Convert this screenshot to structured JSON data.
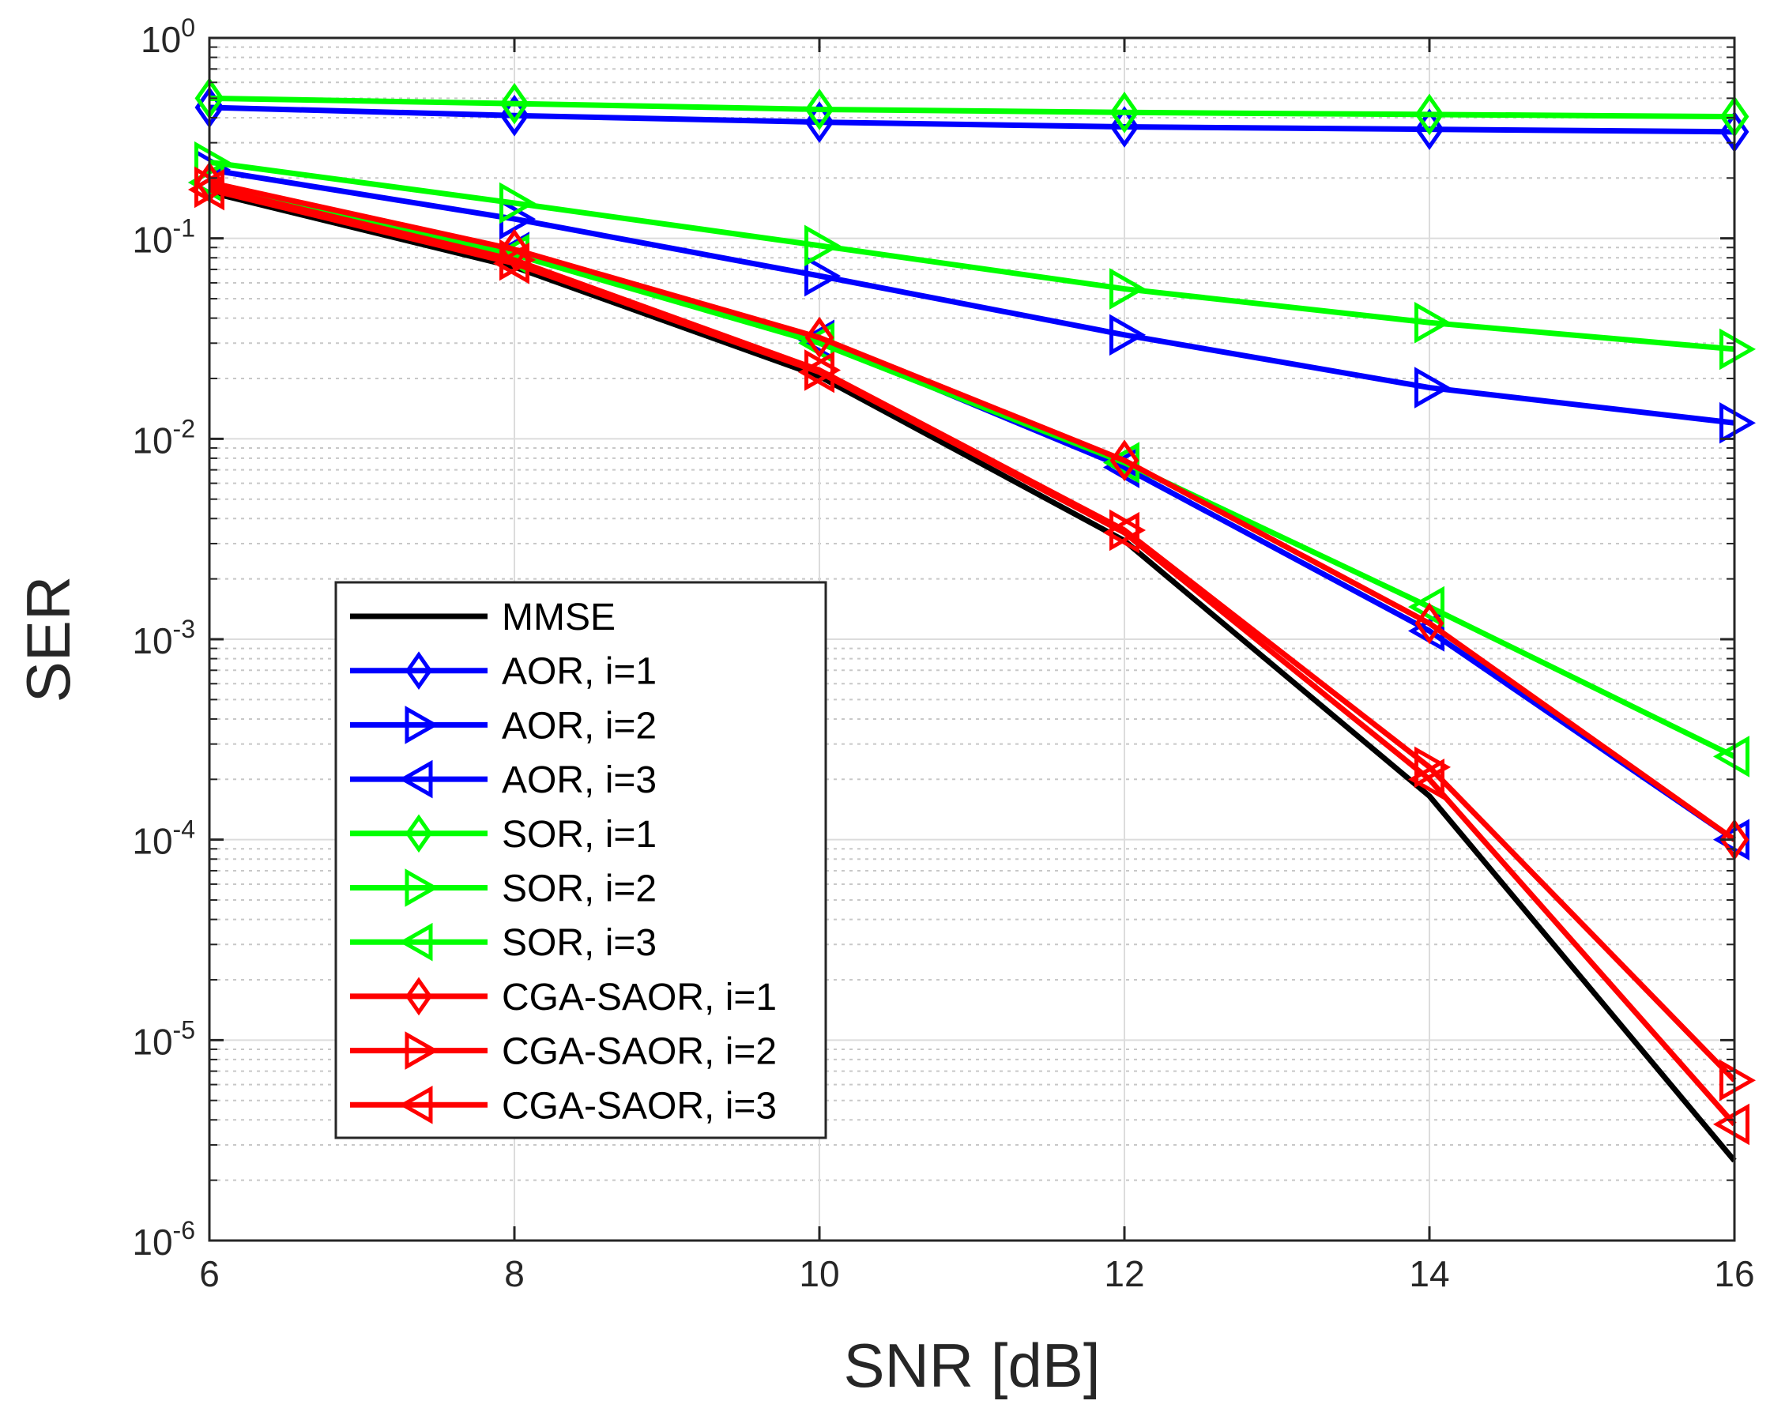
{
  "chart_data": {
    "type": "line",
    "title": "",
    "xlabel": "SNR [dB]",
    "ylabel": "SER",
    "x_scale": "linear",
    "y_scale": "log",
    "xlim": [
      6,
      16
    ],
    "ylim": [
      1e-06,
      1
    ],
    "x_ticks": [
      "6",
      "8",
      "10",
      "12",
      "14",
      "16"
    ],
    "y_ticks": [
      {
        "base": "10",
        "exp": "0"
      },
      {
        "base": "10",
        "exp": "-1"
      },
      {
        "base": "10",
        "exp": "-2"
      },
      {
        "base": "10",
        "exp": "-3"
      },
      {
        "base": "10",
        "exp": "-4"
      },
      {
        "base": "10",
        "exp": "-5"
      },
      {
        "base": "10",
        "exp": "-6"
      }
    ],
    "grid": true,
    "legend_position": "lower-left",
    "x": [
      6,
      8,
      10,
      12,
      14,
      16
    ],
    "series": [
      {
        "name": "MMSE",
        "color": "#000000",
        "marker": "none",
        "values": [
          0.17,
          0.072,
          0.0205,
          0.0031,
          0.000165,
          2.5e-06
        ]
      },
      {
        "name": "AOR, i=1",
        "color": "#0000ff",
        "marker": "diamond",
        "values": [
          0.45,
          0.41,
          0.38,
          0.36,
          0.35,
          0.34
        ]
      },
      {
        "name": "AOR, i=2",
        "color": "#0000ff",
        "marker": "triangle-right",
        "values": [
          0.22,
          0.125,
          0.065,
          0.033,
          0.018,
          0.012
        ]
      },
      {
        "name": "AOR, i=3",
        "color": "#0000ff",
        "marker": "triangle-left",
        "values": [
          0.19,
          0.085,
          0.031,
          0.0072,
          0.0011,
          0.0001
        ]
      },
      {
        "name": "SOR, i=1",
        "color": "#00ff00",
        "marker": "diamond",
        "values": [
          0.5,
          0.47,
          0.44,
          0.425,
          0.415,
          0.405
        ]
      },
      {
        "name": "SOR, i=2",
        "color": "#00ff00",
        "marker": "triangle-right",
        "values": [
          0.24,
          0.15,
          0.092,
          0.056,
          0.038,
          0.028
        ]
      },
      {
        "name": "SOR, i=3",
        "color": "#00ff00",
        "marker": "triangle-left",
        "values": [
          0.19,
          0.083,
          0.03,
          0.0076,
          0.00145,
          0.00026
        ]
      },
      {
        "name": "CGA-SAOR, i=1",
        "color": "#ff0000",
        "marker": "diamond",
        "values": [
          0.19,
          0.088,
          0.032,
          0.0078,
          0.0012,
          0.0001
        ]
      },
      {
        "name": "CGA-SAOR, i=2",
        "color": "#ff0000",
        "marker": "triangle-right",
        "values": [
          0.18,
          0.078,
          0.022,
          0.0035,
          0.00023,
          6.3e-06
        ]
      },
      {
        "name": "CGA-SAOR, i=3",
        "color": "#ff0000",
        "marker": "triangle-left",
        "values": [
          0.175,
          0.075,
          0.0215,
          0.0034,
          0.0002,
          3.8e-06
        ]
      }
    ]
  }
}
